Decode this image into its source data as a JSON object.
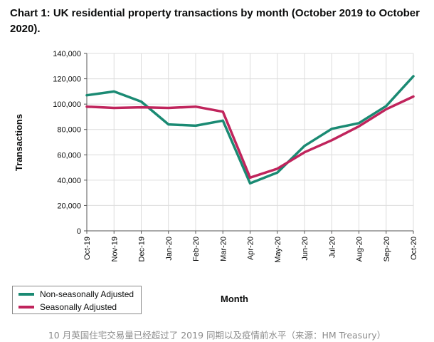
{
  "chart_data": {
    "type": "line",
    "title": "Chart 1: UK residential property transactions by month (October 2019 to October 2020).",
    "xlabel": "Month",
    "ylabel": "Transactions",
    "categories": [
      "Oct-19",
      "Nov-19",
      "Dec-19",
      "Jan-20",
      "Feb-20",
      "Mar-20",
      "Apr-20",
      "May-20",
      "Jun-20",
      "Jul-20",
      "Aug-20",
      "Sep-20",
      "Oct-20"
    ],
    "ylim": [
      0,
      140000
    ],
    "yticks": [
      0,
      20000,
      40000,
      60000,
      80000,
      100000,
      120000,
      140000
    ],
    "ytick_labels": [
      "0",
      "20,000",
      "40,000",
      "60,000",
      "80,000",
      "100,000",
      "120,000",
      "140,000"
    ],
    "grid": true,
    "legend_position": "bottom-left",
    "series": [
      {
        "name": "Non-seasonally Adjusted",
        "color": "#1a8a73",
        "values": [
          107000,
          110000,
          102000,
          84000,
          83000,
          87000,
          37500,
          46000,
          67000,
          80500,
          85000,
          98500,
          122000
        ]
      },
      {
        "name": "Seasonally Adjusted",
        "color": "#c0245c",
        "values": [
          98000,
          97000,
          97500,
          97000,
          98000,
          94000,
          42000,
          49000,
          62000,
          71500,
          82500,
          96000,
          106000
        ]
      }
    ]
  },
  "caption": "10 月英国住宅交易量已经超过了 2019 同期以及疫情前水平（来源：HM Treasury）"
}
